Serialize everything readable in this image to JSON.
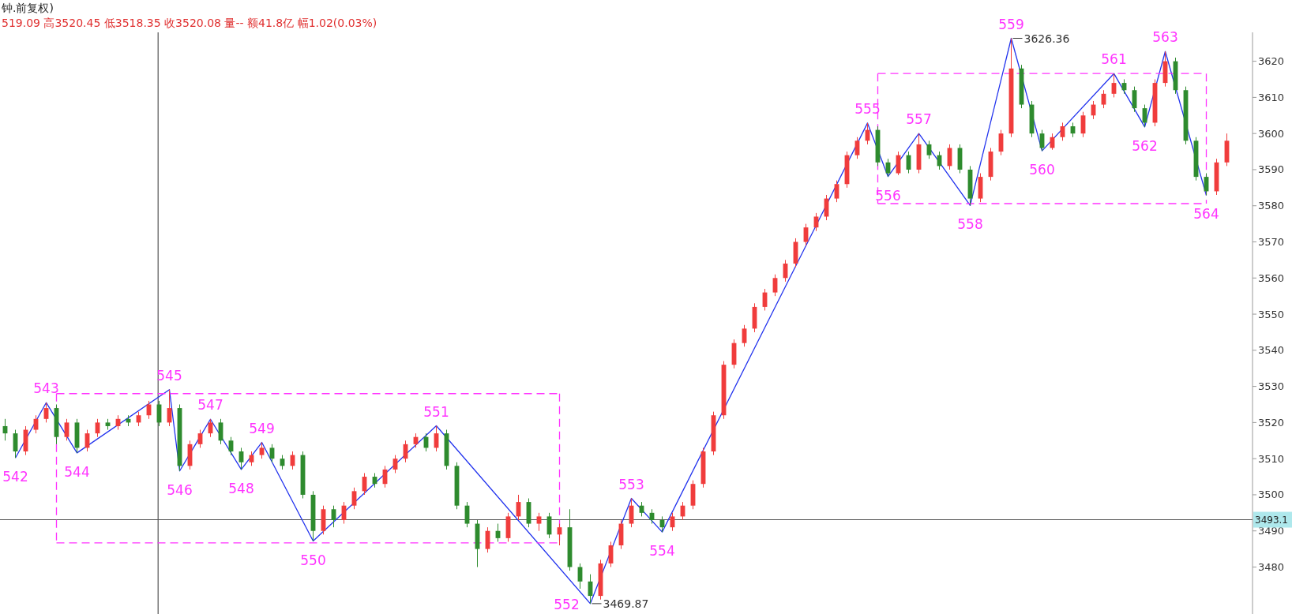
{
  "chart_data": {
    "type": "candlestick",
    "title": "钟.前复权)",
    "subtitle": "519.09 高3520.45 低3518.35 收3520.08 量-- 额41.8亿 幅1.02(0.03%)",
    "categories": [
      null,
      null,
      null,
      null,
      null,
      null,
      null,
      null,
      null,
      null,
      null,
      null,
      null,
      null,
      null,
      null,
      null,
      null,
      null,
      null,
      null,
      null,
      null,
      null,
      null,
      null,
      null,
      null,
      null,
      null,
      null,
      null,
      null,
      null,
      null,
      null,
      null,
      null,
      null,
      null,
      null,
      null,
      null,
      null,
      null,
      null,
      null,
      null,
      null,
      null,
      null,
      null,
      null,
      null,
      null,
      null,
      null,
      null,
      null,
      null,
      null,
      null,
      null,
      null,
      null,
      null,
      null,
      null,
      null,
      null,
      null,
      null,
      null,
      null,
      null,
      null,
      null,
      null,
      null,
      null,
      null,
      null,
      null,
      null,
      null,
      null,
      null,
      null,
      null,
      null,
      null,
      null,
      null,
      null,
      null,
      null,
      null,
      null,
      null,
      null,
      null,
      null,
      null,
      null,
      null,
      null,
      null,
      null,
      null,
      null,
      null,
      null,
      null,
      null,
      null,
      null,
      null,
      null,
      null,
      null
    ],
    "ohlc": [
      [
        3519,
        3521,
        3515,
        3517
      ],
      [
        3517,
        3518,
        3510.2,
        3512
      ],
      [
        3512,
        3519,
        3511,
        3518
      ],
      [
        3518,
        3522,
        3517,
        3521
      ],
      [
        3521,
        3525.5,
        3520,
        3524
      ],
      [
        3524,
        3525,
        3514,
        3516
      ],
      [
        3516,
        3521,
        3515,
        3520
      ],
      [
        3520,
        3521,
        3511.6,
        3513
      ],
      [
        3513,
        3518,
        3512,
        3517
      ],
      [
        3517,
        3521,
        3516,
        3520
      ],
      [
        3520,
        3521,
        3518,
        3519
      ],
      [
        3519,
        3522,
        3518,
        3521
      ],
      [
        3521,
        3522,
        3519,
        3520
      ],
      [
        3520,
        3523,
        3519,
        3522
      ],
      [
        3522,
        3526,
        3521,
        3525
      ],
      [
        3525,
        3526,
        3519,
        3520
      ],
      [
        3520,
        3529.1,
        3519,
        3524
      ],
      [
        3524,
        3525,
        3506.6,
        3508
      ],
      [
        3508,
        3515,
        3507,
        3514
      ],
      [
        3514,
        3518,
        3513,
        3517
      ],
      [
        3517,
        3520.9,
        3516,
        3520
      ],
      [
        3520,
        3521,
        3514,
        3515
      ],
      [
        3515,
        3516,
        3511,
        3512
      ],
      [
        3512,
        3513,
        3507,
        3509
      ],
      [
        3509,
        3512,
        3508,
        3511
      ],
      [
        3511,
        3514.5,
        3510,
        3513
      ],
      [
        3513,
        3514,
        3509,
        3510
      ],
      [
        3510,
        3511,
        3507,
        3508
      ],
      [
        3508,
        3512,
        3507,
        3511
      ],
      [
        3511,
        3512,
        3499,
        3500
      ],
      [
        3500,
        3501,
        3487.2,
        3490
      ],
      [
        3490,
        3497,
        3489,
        3496
      ],
      [
        3496,
        3497,
        3491,
        3493
      ],
      [
        3493,
        3498,
        3492,
        3497
      ],
      [
        3497,
        3502,
        3496,
        3501
      ],
      [
        3501,
        3506,
        3500,
        3505
      ],
      [
        3505,
        3506,
        3502,
        3503
      ],
      [
        3503,
        3508,
        3502,
        3507
      ],
      [
        3507,
        3511,
        3506,
        3510
      ],
      [
        3510,
        3515,
        3509,
        3514
      ],
      [
        3514,
        3517,
        3513,
        3516
      ],
      [
        3516,
        3517,
        3512,
        3513
      ],
      [
        3513,
        3519.1,
        3512,
        3517
      ],
      [
        3517,
        3518,
        3507,
        3508
      ],
      [
        3508,
        3509,
        3496,
        3497
      ],
      [
        3497,
        3498,
        3491,
        3492
      ],
      [
        3492,
        3493,
        3480,
        3485
      ],
      [
        3485,
        3491,
        3484,
        3490
      ],
      [
        3490,
        3492,
        3487,
        3488
      ],
      [
        3488,
        3495,
        3487,
        3494
      ],
      [
        3494,
        3500,
        3493,
        3498
      ],
      [
        3498,
        3499,
        3491,
        3492
      ],
      [
        3492,
        3495,
        3490,
        3494
      ],
      [
        3494,
        3495,
        3488,
        3489
      ],
      [
        3489,
        3492,
        3486,
        3491
      ],
      [
        3491,
        3496,
        3479,
        3480
      ],
      [
        3480,
        3481,
        3474,
        3476
      ],
      [
        3476,
        3478,
        3469.87,
        3472
      ],
      [
        3472,
        3482,
        3471,
        3481
      ],
      [
        3481,
        3487,
        3480,
        3486
      ],
      [
        3486,
        3493,
        3485,
        3492
      ],
      [
        3492,
        3499,
        3491,
        3497
      ],
      [
        3497,
        3498,
        3494,
        3495
      ],
      [
        3495,
        3496,
        3492,
        3493
      ],
      [
        3493,
        3494,
        3489.7,
        3491
      ],
      [
        3491,
        3495,
        3490,
        3494
      ],
      [
        3494,
        3498,
        3493,
        3497
      ],
      [
        3497,
        3504,
        3496,
        3503
      ],
      [
        3503,
        3513,
        3502,
        3512
      ],
      [
        3512,
        3523,
        3511,
        3522
      ],
      [
        3522,
        3537,
        3521,
        3536
      ],
      [
        3536,
        3543,
        3535,
        3542
      ],
      [
        3542,
        3547,
        3541,
        3546
      ],
      [
        3546,
        3553,
        3545,
        3552
      ],
      [
        3552,
        3557,
        3551,
        3556
      ],
      [
        3556,
        3561,
        3555,
        3560
      ],
      [
        3560,
        3565,
        3559,
        3564
      ],
      [
        3564,
        3571,
        3563,
        3570
      ],
      [
        3570,
        3575,
        3569,
        3574
      ],
      [
        3574,
        3578,
        3573,
        3577
      ],
      [
        3577,
        3583,
        3576,
        3582
      ],
      [
        3582,
        3587,
        3581,
        3586
      ],
      [
        3586,
        3595,
        3585,
        3594
      ],
      [
        3594,
        3599,
        3593,
        3598
      ],
      [
        3598,
        3602.9,
        3597,
        3601
      ],
      [
        3601,
        3602,
        3591,
        3592
      ],
      [
        3592,
        3593,
        3588.1,
        3589
      ],
      [
        3589,
        3595,
        3588.5,
        3594
      ],
      [
        3594,
        3595,
        3589,
        3590
      ],
      [
        3590,
        3600,
        3589,
        3597
      ],
      [
        3597,
        3598,
        3593,
        3594
      ],
      [
        3594,
        3595,
        3590,
        3591
      ],
      [
        3591,
        3597,
        3590,
        3596
      ],
      [
        3596,
        3597,
        3589,
        3590
      ],
      [
        3590,
        3591,
        3580.1,
        3582
      ],
      [
        3582,
        3589,
        3581,
        3588
      ],
      [
        3588,
        3596,
        3587,
        3595
      ],
      [
        3595,
        3601,
        3594,
        3600
      ],
      [
        3600,
        3626.36,
        3599,
        3618
      ],
      [
        3618,
        3619,
        3607,
        3608
      ],
      [
        3608,
        3609,
        3599,
        3600
      ],
      [
        3600,
        3601,
        3595.2,
        3596
      ],
      [
        3596,
        3600,
        3595.5,
        3599
      ],
      [
        3599,
        3603,
        3598,
        3602
      ],
      [
        3602,
        3603,
        3599,
        3600
      ],
      [
        3600,
        3606,
        3599,
        3605
      ],
      [
        3605,
        3609,
        3604,
        3608
      ],
      [
        3608,
        3612,
        3607,
        3611
      ],
      [
        3611,
        3616.6,
        3610,
        3614
      ],
      [
        3614,
        3615,
        3611,
        3612
      ],
      [
        3612,
        3613,
        3606,
        3607
      ],
      [
        3607,
        3608,
        3601.8,
        3603
      ],
      [
        3603,
        3615,
        3602,
        3614
      ],
      [
        3614,
        3622.7,
        3613,
        3620
      ],
      [
        3620,
        3621,
        3611,
        3612
      ],
      [
        3612,
        3613,
        3597,
        3598
      ],
      [
        3598,
        3599,
        3587,
        3588
      ],
      [
        3588,
        3589,
        3582.9,
        3584
      ],
      [
        3584,
        3593,
        3583,
        3592
      ],
      [
        3592,
        3600,
        3591,
        3598
      ]
    ],
    "colors": [
      "#2e8b2e",
      "#2e8b2e",
      "#f03c3c",
      "#f03c3c",
      "#f03c3c",
      "#2e8b2e",
      "#f03c3c",
      "#2e8b2e",
      "#f03c3c",
      "#f03c3c",
      "#2e8b2e",
      "#f03c3c",
      "#2e8b2e",
      "#f03c3c",
      "#f03c3c",
      "#2e8b2e",
      "#f03c3c",
      "#2e8b2e",
      "#f03c3c",
      "#f03c3c",
      "#f03c3c",
      "#2e8b2e",
      "#2e8b2e",
      "#2e8b2e",
      "#f03c3c",
      "#f03c3c",
      "#2e8b2e",
      "#2e8b2e",
      "#f03c3c",
      "#2e8b2e",
      "#2e8b2e",
      "#f03c3c",
      "#2e8b2e",
      "#f03c3c",
      "#f03c3c",
      "#f03c3c",
      "#2e8b2e",
      "#f03c3c",
      "#f03c3c",
      "#f03c3c",
      "#f03c3c",
      "#2e8b2e",
      "#f03c3c",
      "#2e8b2e",
      "#2e8b2e",
      "#2e8b2e",
      "#2e8b2e",
      "#f03c3c",
      "#2e8b2e",
      "#f03c3c",
      "#f03c3c",
      "#2e8b2e",
      "#f03c3c",
      "#2e8b2e",
      "#f03c3c",
      "#2e8b2e",
      "#2e8b2e",
      "#2e8b2e",
      "#f03c3c",
      "#f03c3c",
      "#f03c3c",
      "#f03c3c",
      "#2e8b2e",
      "#2e8b2e",
      "#2e8b2e",
      "#f03c3c",
      "#f03c3c",
      "#f03c3c",
      "#f03c3c",
      "#f03c3c",
      "#f03c3c",
      "#f03c3c",
      "#f03c3c",
      "#f03c3c",
      "#f03c3c",
      "#f03c3c",
      "#f03c3c",
      "#f03c3c",
      "#f03c3c",
      "#f03c3c",
      "#f03c3c",
      "#f03c3c",
      "#f03c3c",
      "#f03c3c",
      "#f03c3c",
      "#2e8b2e",
      "#2e8b2e",
      "#f03c3c",
      "#2e8b2e",
      "#f03c3c",
      "#2e8b2e",
      "#2e8b2e",
      "#f03c3c",
      "#2e8b2e",
      "#2e8b2e",
      "#f03c3c",
      "#f03c3c",
      "#f03c3c",
      "#f03c3c",
      "#2e8b2e",
      "#2e8b2e",
      "#2e8b2e",
      "#f03c3c",
      "#f03c3c",
      "#2e8b2e",
      "#f03c3c",
      "#f03c3c",
      "#f03c3c",
      "#f03c3c",
      "#2e8b2e",
      "#2e8b2e",
      "#2e8b2e",
      "#f03c3c",
      "#f03c3c",
      "#2e8b2e",
      "#2e8b2e",
      "#2e8b2e",
      "#2e8b2e",
      "#f03c3c",
      "#f03c3c"
    ],
    "series": [
      {
        "type": "line",
        "color": "#2233ee",
        "line_style": "solid",
        "values": [
          null,
          3510.2,
          null,
          null,
          3525.5,
          null,
          null,
          3511.6,
          null,
          null,
          null,
          null,
          null,
          null,
          null,
          null,
          3529.1,
          3506.6,
          null,
          null,
          3520.9,
          null,
          null,
          3507,
          null,
          3514.5,
          null,
          null,
          null,
          null,
          3487.2,
          null,
          null,
          null,
          null,
          null,
          null,
          null,
          null,
          null,
          null,
          null,
          3519.1,
          null,
          null,
          null,
          null,
          null,
          null,
          null,
          null,
          null,
          null,
          null,
          null,
          null,
          null,
          3469.87,
          null,
          null,
          null,
          3499,
          null,
          null,
          3489.7,
          null,
          null,
          null,
          null,
          null,
          null,
          null,
          null,
          null,
          null,
          null,
          null,
          null,
          null,
          null,
          null,
          null,
          null,
          null,
          3602.9,
          null,
          3588.1,
          null,
          null,
          3600,
          null,
          null,
          null,
          null,
          3580.1,
          null,
          null,
          null,
          3626.36,
          null,
          null,
          3595.2,
          null,
          null,
          null,
          null,
          null,
          null,
          3616.6,
          null,
          null,
          3601.8,
          null,
          3622.7,
          null,
          null,
          null,
          3582.9,
          null,
          null
        ]
      },
      {
        "type": "line",
        "color": "#ff33ff",
        "line_style": "dashed",
        "values": [
          null,
          null,
          null,
          null,
          null,
          3528,
          null,
          null,
          null,
          null,
          null,
          null,
          null,
          null,
          null,
          null,
          null,
          null,
          null,
          null,
          null,
          null,
          null,
          null,
          null,
          null,
          null,
          null,
          null,
          null,
          null,
          null,
          null,
          null,
          null,
          null,
          null,
          null,
          null,
          null,
          null,
          null,
          null,
          null,
          null,
          null,
          null,
          null,
          null,
          null,
          null,
          null,
          null,
          null,
          3528,
          null,
          null,
          null,
          null,
          null,
          null,
          null,
          null,
          null,
          null,
          null,
          null,
          null,
          null,
          null,
          null,
          null,
          null,
          null,
          null,
          null,
          null,
          null,
          null,
          null,
          null,
          null,
          null,
          null,
          null,
          null,
          null,
          null,
          null,
          null,
          null,
          null,
          null,
          null,
          null,
          null,
          null,
          null,
          null,
          null,
          null,
          null,
          null,
          null,
          null,
          null,
          null,
          null,
          null,
          null,
          null,
          null,
          null,
          null,
          null,
          null,
          null,
          null,
          null,
          null
        ]
      },
      {
        "type": "line",
        "color": "#ff33ff",
        "line_style": "dashed",
        "values": [
          null,
          null,
          null,
          null,
          null,
          3486.7,
          null,
          null,
          null,
          null,
          null,
          null,
          null,
          null,
          null,
          null,
          null,
          null,
          null,
          null,
          null,
          null,
          null,
          null,
          null,
          null,
          null,
          null,
          null,
          null,
          null,
          null,
          null,
          null,
          null,
          null,
          null,
          null,
          null,
          null,
          null,
          null,
          null,
          null,
          null,
          null,
          null,
          null,
          null,
          null,
          null,
          null,
          null,
          null,
          3486.7,
          null,
          null,
          null,
          null,
          null,
          null,
          null,
          null,
          null,
          null,
          null,
          null,
          null,
          null,
          null,
          null,
          null,
          null,
          null,
          null,
          null,
          null,
          null,
          null,
          null,
          null,
          null,
          null,
          null,
          null,
          null,
          null,
          null,
          null,
          null,
          null,
          null,
          null,
          null,
          null,
          null,
          null,
          null,
          null,
          null,
          null,
          null,
          null,
          null,
          null,
          null,
          null,
          null,
          null,
          null,
          null,
          null,
          null,
          null,
          null,
          null,
          null,
          null,
          null,
          null
        ]
      },
      {
        "type": "line",
        "color": "#ff33ff",
        "line_style": "dashed",
        "values": [
          null,
          null,
          null,
          null,
          null,
          null,
          null,
          null,
          null,
          null,
          null,
          null,
          null,
          null,
          null,
          null,
          null,
          null,
          null,
          null,
          null,
          null,
          null,
          null,
          null,
          null,
          null,
          null,
          null,
          null,
          null,
          null,
          null,
          null,
          null,
          null,
          null,
          null,
          null,
          null,
          null,
          null,
          null,
          null,
          null,
          null,
          null,
          null,
          null,
          null,
          null,
          null,
          null,
          null,
          null,
          null,
          null,
          null,
          null,
          null,
          null,
          null,
          null,
          null,
          null,
          null,
          null,
          null,
          null,
          null,
          null,
          null,
          null,
          null,
          null,
          null,
          null,
          null,
          null,
          null,
          null,
          null,
          null,
          null,
          null,
          3616.6,
          null,
          null,
          null,
          null,
          null,
          null,
          null,
          null,
          null,
          null,
          null,
          null,
          null,
          null,
          null,
          null,
          null,
          null,
          null,
          null,
          null,
          null,
          null,
          null,
          null,
          null,
          null,
          null,
          null,
          null,
          null,
          3616.6,
          null,
          null
        ]
      },
      {
        "type": "line",
        "color": "#ff33ff",
        "line_style": "dashed",
        "values": [
          null,
          null,
          null,
          null,
          null,
          null,
          null,
          null,
          null,
          null,
          null,
          null,
          null,
          null,
          null,
          null,
          null,
          null,
          null,
          null,
          null,
          null,
          null,
          null,
          null,
          null,
          null,
          null,
          null,
          null,
          null,
          null,
          null,
          null,
          null,
          null,
          null,
          null,
          null,
          null,
          null,
          null,
          null,
          null,
          null,
          null,
          null,
          null,
          null,
          null,
          null,
          null,
          null,
          null,
          null,
          null,
          null,
          null,
          null,
          null,
          null,
          null,
          null,
          null,
          null,
          null,
          null,
          null,
          null,
          null,
          null,
          null,
          null,
          null,
          null,
          null,
          null,
          null,
          null,
          null,
          null,
          null,
          null,
          null,
          null,
          3580.6,
          null,
          null,
          null,
          null,
          null,
          null,
          null,
          null,
          null,
          null,
          null,
          null,
          null,
          null,
          null,
          null,
          null,
          null,
          null,
          null,
          null,
          null,
          null,
          null,
          null,
          null,
          null,
          null,
          null,
          null,
          null,
          3580.6,
          null,
          null
        ]
      }
    ],
    "annotations": [
      "3626.36",
      "3469.87",
      "542",
      "543",
      "544",
      "545",
      "546",
      "547",
      "548",
      "549",
      "550",
      "551",
      "552",
      "553",
      "554",
      "555",
      "556",
      "557",
      "558",
      "559",
      "560",
      "561",
      "562",
      "563",
      "564"
    ],
    "ref_lines": [
      {
        "axis": "y",
        "value": 3493.1,
        "label": "3493.1",
        "color": "#555555"
      }
    ],
    "ylim": [
      3467,
      3628
    ],
    "yticks": [
      3480,
      3490,
      3500,
      3510,
      3520,
      3530,
      3540,
      3550,
      3560,
      3570,
      3580,
      3590,
      3600,
      3610,
      3620
    ],
    "tick_labels": "y"
  }
}
